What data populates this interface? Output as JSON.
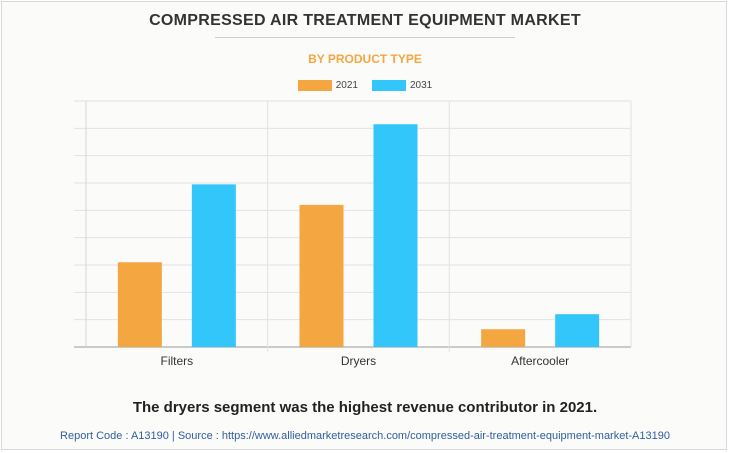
{
  "chart_data": {
    "type": "bar",
    "title": "COMPRESSED AIR TREATMENT EQUIPMENT MARKET",
    "subtitle": "BY PRODUCT TYPE",
    "categories": [
      "Filters",
      "Dryers",
      "Aftercooler"
    ],
    "series": [
      {
        "name": "2021",
        "values": [
          3.1,
          5.2,
          0.65
        ],
        "color": "#f4a641"
      },
      {
        "name": "2031",
        "values": [
          5.95,
          8.15,
          1.2
        ],
        "color": "#33c6fb"
      }
    ],
    "ylim": [
      0,
      9
    ],
    "y_ticks_shown": false,
    "grid": true,
    "legend_position": "top-center"
  },
  "caption": "The dryers segment was the highest revenue contributor in 2021.",
  "footer": "Report Code : A13190  |  Source : https://www.alliedmarketresearch.com/compressed-air-treatment-equipment-market-A13190"
}
